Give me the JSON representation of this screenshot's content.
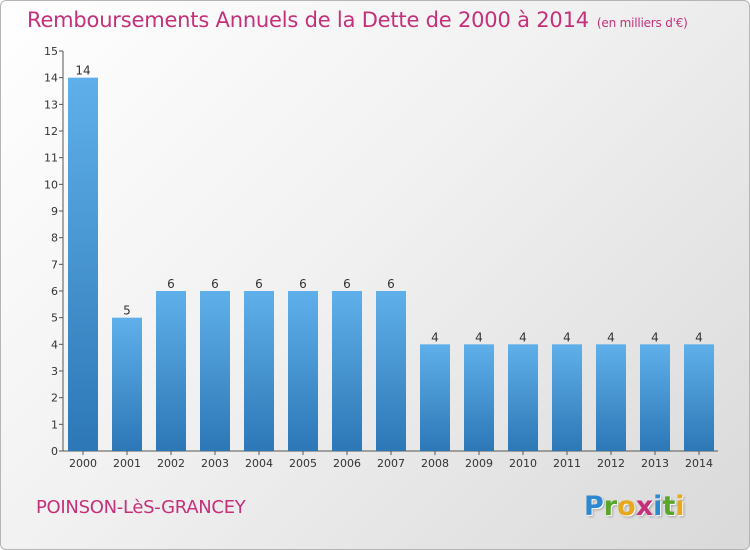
{
  "title": "Remboursements Annuels de la Dette de 2000 à 2014",
  "unit": "(en milliers d'€)",
  "commune": "POINSON-LèS-GRANCEY",
  "logo": {
    "letters": [
      "P",
      "r",
      "o",
      "x",
      "i",
      "t",
      "i"
    ]
  },
  "colors": {
    "accent": "#c4307a",
    "bar_top": "#5fb0ea",
    "bar_bottom": "#2d77b6"
  },
  "chart_data": {
    "type": "bar",
    "categories": [
      "2000",
      "2001",
      "2002",
      "2003",
      "2004",
      "2005",
      "2006",
      "2007",
      "2008",
      "2009",
      "2010",
      "2011",
      "2012",
      "2013",
      "2014"
    ],
    "values": [
      14,
      5,
      6,
      6,
      6,
      6,
      6,
      6,
      4,
      4,
      4,
      4,
      4,
      4,
      4
    ],
    "ylim": [
      0,
      15
    ],
    "yticks": [
      "0",
      "1",
      "2",
      "3",
      "4",
      "5",
      "6",
      "7",
      "8",
      "9",
      "10",
      "11",
      "12",
      "13",
      "14",
      "15"
    ],
    "grid": false,
    "data_labels": true
  }
}
